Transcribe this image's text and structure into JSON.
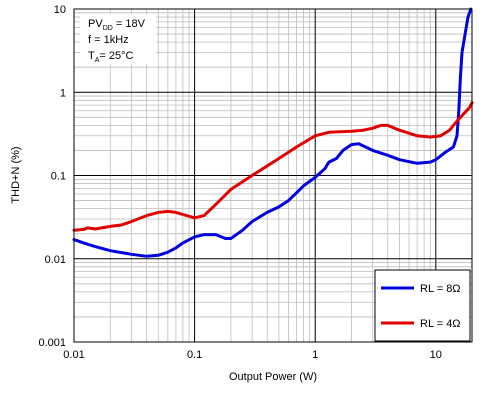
{
  "chart_data": {
    "type": "line",
    "xlabel": "Output Power (W)",
    "ylabel": "THD+N (%)",
    "x_scale": "log",
    "y_scale": "log",
    "xlim": [
      0.01,
      20
    ],
    "ylim": [
      0.001,
      10
    ],
    "x_ticks": [
      "0.01",
      "0.1",
      "1",
      "10"
    ],
    "y_ticks": [
      "10",
      "1",
      "0.1",
      "0.01",
      "0.001"
    ],
    "grid": true,
    "conditions": {
      "pvdd": {
        "main": "PV",
        "sub": "DD",
        "rest": " = 18V"
      },
      "freq": "f = 1kHz",
      "temp": {
        "main": "T",
        "sub": "A",
        "rest": "= 25°C"
      }
    },
    "legend_position": "bottom-right",
    "series": [
      {
        "name": "RL = 8Ω",
        "color": "#0000e0",
        "points": [
          [
            0.01,
            0.017
          ],
          [
            0.012,
            0.0155
          ],
          [
            0.015,
            0.014
          ],
          [
            0.02,
            0.0125
          ],
          [
            0.03,
            0.0113
          ],
          [
            0.04,
            0.0107
          ],
          [
            0.05,
            0.011
          ],
          [
            0.06,
            0.012
          ],
          [
            0.07,
            0.0135
          ],
          [
            0.08,
            0.0155
          ],
          [
            0.1,
            0.0183
          ],
          [
            0.12,
            0.0195
          ],
          [
            0.15,
            0.0195
          ],
          [
            0.18,
            0.0175
          ],
          [
            0.2,
            0.0175
          ],
          [
            0.25,
            0.022
          ],
          [
            0.3,
            0.028
          ],
          [
            0.4,
            0.036
          ],
          [
            0.5,
            0.042
          ],
          [
            0.6,
            0.05
          ],
          [
            0.7,
            0.062
          ],
          [
            0.8,
            0.075
          ],
          [
            1.0,
            0.095
          ],
          [
            1.2,
            0.12
          ],
          [
            1.3,
            0.145
          ],
          [
            1.5,
            0.16
          ],
          [
            1.7,
            0.2
          ],
          [
            2.0,
            0.235
          ],
          [
            2.3,
            0.24
          ],
          [
            3.0,
            0.2
          ],
          [
            4.0,
            0.175
          ],
          [
            5.0,
            0.155
          ],
          [
            7.0,
            0.14
          ],
          [
            9.0,
            0.145
          ],
          [
            10.0,
            0.155
          ],
          [
            12.0,
            0.19
          ],
          [
            14.0,
            0.22
          ],
          [
            15.0,
            0.3
          ],
          [
            15.5,
            0.6
          ],
          [
            16.0,
            1.5
          ],
          [
            16.5,
            3.0
          ],
          [
            17.5,
            5.0
          ],
          [
            18.5,
            8.0
          ],
          [
            19.5,
            10.0
          ]
        ]
      },
      {
        "name": "RL = 4Ω",
        "color": "#e00000",
        "points": [
          [
            0.01,
            0.022
          ],
          [
            0.012,
            0.0225
          ],
          [
            0.013,
            0.0235
          ],
          [
            0.015,
            0.0228
          ],
          [
            0.02,
            0.0245
          ],
          [
            0.025,
            0.0255
          ],
          [
            0.03,
            0.028
          ],
          [
            0.04,
            0.033
          ],
          [
            0.05,
            0.036
          ],
          [
            0.06,
            0.037
          ],
          [
            0.07,
            0.036
          ],
          [
            0.08,
            0.034
          ],
          [
            0.1,
            0.031
          ],
          [
            0.12,
            0.033
          ],
          [
            0.15,
            0.045
          ],
          [
            0.2,
            0.068
          ],
          [
            0.3,
            0.1
          ],
          [
            0.5,
            0.16
          ],
          [
            0.7,
            0.22
          ],
          [
            1.0,
            0.3
          ],
          [
            1.3,
            0.33
          ],
          [
            2.0,
            0.34
          ],
          [
            2.5,
            0.35
          ],
          [
            3.0,
            0.37
          ],
          [
            3.5,
            0.4
          ],
          [
            4.0,
            0.4
          ],
          [
            5.0,
            0.35
          ],
          [
            7.0,
            0.3
          ],
          [
            9.0,
            0.29
          ],
          [
            11.0,
            0.3
          ],
          [
            13.0,
            0.35
          ],
          [
            15.0,
            0.45
          ],
          [
            17.0,
            0.55
          ],
          [
            19.0,
            0.65
          ],
          [
            20.0,
            0.75
          ]
        ]
      }
    ]
  }
}
